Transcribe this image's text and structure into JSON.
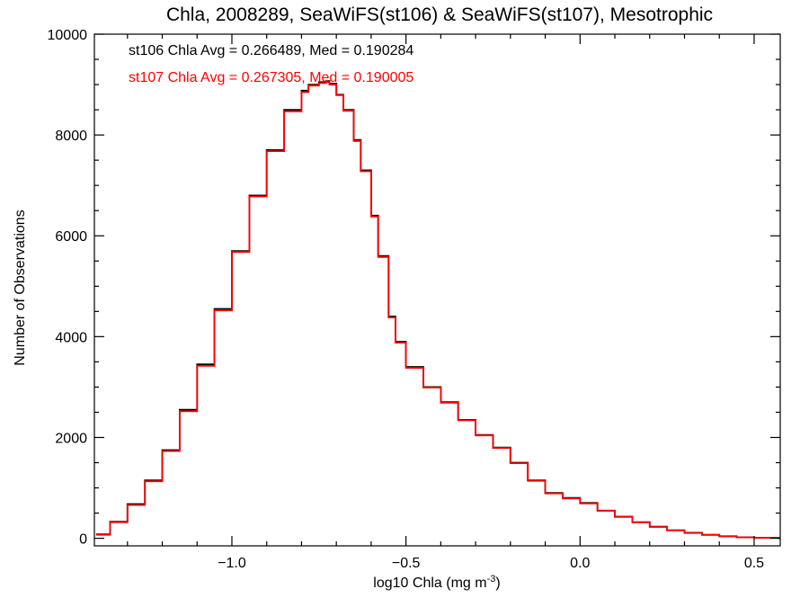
{
  "chart_data": {
    "type": "line",
    "step": true,
    "title": "Chla, 2008289, SeaWiFS(st106) & SeaWiFS(st107), Mesotrophic",
    "xlabel": "log10 Chla (mg m",
    "xlabel_sup": "-3",
    "xlabel_close": ")",
    "ylabel": "Number of Observations",
    "xlim": [
      -1.395,
      0.575
    ],
    "ylim": [
      -150,
      10000
    ],
    "x_ticks": [
      -1.0,
      -0.5,
      0.0,
      0.5
    ],
    "x_tick_labels": [
      "−1.0",
      "−0.5",
      "0.0",
      "0.5"
    ],
    "y_ticks": [
      0,
      2000,
      4000,
      6000,
      8000,
      10000
    ],
    "y_tick_labels": [
      "0",
      "2000",
      "4000",
      "6000",
      "8000",
      "10000"
    ],
    "x_minor_step": 0.1,
    "y_minor_step": 500,
    "annotations": [
      {
        "text": "st106 Chla Avg = 0.266489, Med = 0.190284",
        "color": "#000000"
      },
      {
        "text": "st107 Chla Avg = 0.267305, Med = 0.190005",
        "color": "#ff0000"
      }
    ],
    "series": [
      {
        "color": "#000000",
        "x": [
          -1.39,
          -1.35,
          -1.3,
          -1.25,
          -1.2,
          -1.15,
          -1.1,
          -1.05,
          -1.0,
          -0.95,
          -0.9,
          -0.85,
          -0.8,
          -0.78,
          -0.75,
          -0.73,
          -0.72,
          -0.7,
          -0.68,
          -0.65,
          -0.63,
          -0.6,
          -0.58,
          -0.55,
          -0.53,
          -0.5,
          -0.45,
          -0.4,
          -0.35,
          -0.3,
          -0.25,
          -0.2,
          -0.15,
          -0.1,
          -0.05,
          0.0,
          0.05,
          0.1,
          0.15,
          0.2,
          0.25,
          0.3,
          0.35,
          0.4,
          0.45,
          0.5,
          0.57
        ],
        "y": [
          80,
          330,
          680,
          1150,
          1750,
          2550,
          3450,
          4550,
          5700,
          6800,
          7700,
          8500,
          8880,
          9000,
          9050,
          9070,
          9020,
          8800,
          8500,
          7900,
          7300,
          6400,
          5600,
          4400,
          3900,
          3400,
          3000,
          2700,
          2350,
          2050,
          1800,
          1500,
          1150,
          900,
          800,
          700,
          550,
          430,
          320,
          230,
          160,
          110,
          70,
          40,
          20,
          10,
          5
        ]
      },
      {
        "color": "#ff0000",
        "x": [
          -1.39,
          -1.35,
          -1.3,
          -1.25,
          -1.2,
          -1.15,
          -1.1,
          -1.05,
          -1.0,
          -0.95,
          -0.9,
          -0.85,
          -0.8,
          -0.78,
          -0.75,
          -0.73,
          -0.72,
          -0.7,
          -0.68,
          -0.65,
          -0.63,
          -0.6,
          -0.58,
          -0.55,
          -0.53,
          -0.5,
          -0.45,
          -0.4,
          -0.35,
          -0.3,
          -0.25,
          -0.2,
          -0.15,
          -0.1,
          -0.05,
          0.0,
          0.05,
          0.1,
          0.15,
          0.2,
          0.25,
          0.3,
          0.35,
          0.4,
          0.45,
          0.5,
          0.57
        ],
        "y": [
          70,
          320,
          660,
          1130,
          1730,
          2520,
          3420,
          4520,
          5680,
          6780,
          7680,
          8470,
          8850,
          8980,
          9030,
          9050,
          9000,
          8790,
          8480,
          7880,
          7280,
          6380,
          5580,
          4380,
          3880,
          3380,
          2990,
          2690,
          2340,
          2040,
          1790,
          1490,
          1140,
          890,
          790,
          690,
          545,
          425,
          315,
          225,
          155,
          105,
          65,
          38,
          18,
          9,
          4
        ]
      }
    ]
  }
}
